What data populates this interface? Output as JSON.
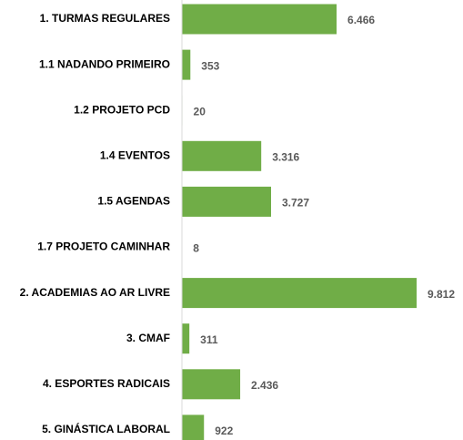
{
  "chart_data": {
    "type": "bar",
    "orientation": "horizontal",
    "categories": [
      "1. TURMAS REGULARES",
      "1.1 NADANDO PRIMEIRO",
      "1.2 PROJETO PCD",
      "1.4 EVENTOS",
      "1.5 AGENDAS",
      "1.7 PROJETO CAMINHAR",
      "2. ACADEMIAS AO AR LIVRE",
      "3. CMAF",
      "4. ESPORTES RADICAIS",
      "5. GINÁSTICA LABORAL"
    ],
    "values": [
      6466,
      353,
      20,
      3316,
      3727,
      8,
      9812,
      311,
      2436,
      922
    ],
    "value_labels": [
      "6.466",
      "353",
      "20",
      "3.316",
      "3.727",
      "8",
      "9.812",
      "311",
      "2.436",
      "922"
    ],
    "color": "#70ad47"
  }
}
